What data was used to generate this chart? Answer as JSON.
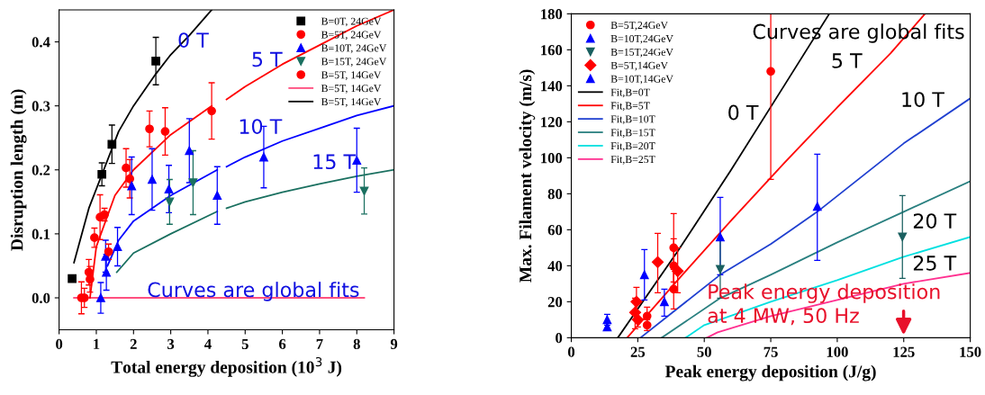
{
  "chart_data": [
    {
      "type": "scatter",
      "xlabel": "Total energy deposition (10$^{3}$ J)",
      "ylabel": "Disruption length (m)",
      "xlim": [
        0,
        9
      ],
      "xticks": [
        0,
        1,
        2,
        3,
        4,
        5,
        6,
        7,
        8,
        9
      ],
      "ylim": [
        -0.05,
        0.45
      ],
      "yticks": [
        {
          "value": 0,
          "label": "0.0"
        },
        0.1,
        0.2,
        0.3,
        0.4
      ],
      "legend": "top right",
      "grid": false,
      "annotations": [
        "0 T",
        "5 T",
        "10 T",
        "15 T",
        "Curves are global fits"
      ],
      "series": [
        {
          "name": "B=0T, 24GeV",
          "type": "scatter",
          "marker": "square",
          "color": "#000000",
          "x": [
            0.35,
            1.15,
            1.42,
            2.6
          ],
          "values": [
            0.03,
            0.193,
            0.24,
            0.37
          ],
          "errors": [
            0.005,
            0.018,
            0.03,
            0.037
          ]
        },
        {
          "name": "B=5T, 24GeV",
          "type": "scatter",
          "marker": "circle",
          "color": "#ff0000",
          "x": [
            0.8,
            0.95,
            1.22,
            1.8,
            2.85,
            4.1
          ],
          "values": [
            0.04,
            0.094,
            0.13,
            0.203,
            0.26,
            0.292
          ],
          "errors": [
            0.02,
            0.015,
            0.01,
            0.03,
            0.037,
            0.044
          ]
        },
        {
          "name": "B=10T, 24GeV",
          "type": "scatter",
          "marker": "triangle",
          "color": "#0000ff",
          "x": [
            1.12,
            1.25,
            1.27,
            1.57,
            2.95,
            4.25,
            5.5,
            8.0
          ],
          "values": [
            0.0,
            0.065,
            0.04,
            0.08,
            0.17,
            0.16,
            0.22,
            0.215
          ],
          "errors": [
            0.024,
            0.025,
            0.028,
            0.03,
            0.037,
            0.045,
            0.048,
            0.05
          ]
        },
        {
          "name": "B=15T, 24GeV",
          "type": "scatter",
          "marker": "triangle_down",
          "color": "#1a7060",
          "x": [
            2.97,
            3.6,
            8.2
          ],
          "values": [
            0.15,
            0.18,
            0.167
          ],
          "errors": [
            0.035,
            0.05,
            0.036
          ]
        },
        {
          "name": "B=5T, 14GeV",
          "type": "scatter",
          "marker": "circle",
          "color": "#ff0000",
          "x": [
            0.6,
            0.68,
            0.83,
            1.1,
            1.33,
            1.9,
            2.43
          ],
          "values": [
            0.0,
            0.0,
            0.029,
            0.126,
            0.072,
            0.186,
            0.264
          ],
          "errors": [
            0.025,
            0.015,
            0.02,
            0.035,
            0.012,
            0.03,
            0.028
          ]
        },
        {
          "type": "scatter",
          "marker": "triangle",
          "color": "#0000ff",
          "x": [
            1.95,
            2.5,
            3.5
          ],
          "values": [
            0.175,
            0.185,
            0.23
          ],
          "errors": [
            0.045,
            0.048,
            0.05
          ]
        },
        {
          "name": "B=5T, 14GeV",
          "type": "line",
          "color": "#ff5080",
          "x": [
            0.4,
            8.2
          ],
          "values": [
            0.0,
            0.0
          ]
        },
        {
          "name": "B=5T, 14GeV",
          "type": "line",
          "color": "#000000",
          "x": [
            0.4,
            0.8,
            1.2,
            1.6,
            2.0,
            2.6,
            3.0,
            3.5,
            4.1
          ],
          "values": [
            0.055,
            0.14,
            0.2,
            0.26,
            0.3,
            0.35,
            0.38,
            0.41,
            0.45
          ]
        },
        {
          "type": "line",
          "color": "#ff0000",
          "x": [
            0.83,
            1.0,
            1.5,
            2.0,
            3.0,
            4.1,
            4.3,
            4.5,
            5.0,
            6.0,
            7.0,
            8.0,
            9.0
          ],
          "values": [
            0.0,
            0.08,
            0.16,
            0.2,
            0.255,
            0.3,
            null,
            0.31,
            0.33,
            0.365,
            0.395,
            0.425,
            0.45
          ]
        },
        {
          "type": "line",
          "color": "#0000ff",
          "x": [
            1.3,
            1.6,
            2.0,
            3.0,
            4.25,
            4.4,
            4.5,
            5.0,
            6.0,
            7.0,
            8.0,
            9.0
          ],
          "values": [
            0.05,
            0.09,
            0.12,
            0.16,
            0.2,
            null,
            0.205,
            0.22,
            0.245,
            0.265,
            0.285,
            0.3
          ]
        },
        {
          "type": "line",
          "color": "#1a7060",
          "x": [
            1.55,
            2.0,
            3.0,
            4.25,
            4.4,
            4.5,
            5.0,
            6.0,
            7.0,
            8.0,
            9.0
          ],
          "values": [
            0.04,
            0.07,
            0.1,
            0.135,
            null,
            0.14,
            0.15,
            0.165,
            0.178,
            0.19,
            0.2
          ]
        }
      ]
    },
    {
      "type": "scatter",
      "xlabel": "Peak energy deposition (J/g)",
      "ylabel": "Max. Filament velocity (m/s)",
      "xlim": [
        0,
        150
      ],
      "xticks": [
        0,
        25,
        50,
        75,
        100,
        125,
        150
      ],
      "ylim": [
        0,
        180
      ],
      "yticks": [
        0,
        20,
        40,
        60,
        80,
        100,
        120,
        140,
        160,
        180
      ],
      "legend": "top left",
      "grid": false,
      "annotations": [
        "Curves are global fits",
        "0 T",
        "5 T",
        "10 T",
        "20 T",
        "25 T",
        "Peak energy deposition\nat 4 MW, 50 Hz"
      ],
      "series": [
        {
          "name": "B=5T,24GeV",
          "type": "scatter",
          "marker": "circle",
          "color": "#ff0000",
          "x": [
            28.5,
            28.5,
            38.5,
            38.5,
            38.5,
            75
          ],
          "values": [
            12,
            7,
            50,
            40,
            27,
            148
          ],
          "errors": [
            [
              7,
              17
            ],
            [
              4,
              10
            ],
            [
              31,
              69
            ],
            [
              28,
              55
            ],
            [
              16,
              38
            ],
            [
              88,
              180
            ]
          ]
        },
        {
          "name": "B=10T,24GeV",
          "type": "scatter",
          "marker": "triangle",
          "color": "#0000ff",
          "x": [
            27.5,
            35,
            56,
            92.5
          ],
          "values": [
            35,
            20,
            56,
            73
          ],
          "errors": [
            [
              21,
              49
            ],
            [
              12,
              27
            ],
            [
              35,
              78
            ],
            [
              43,
              102
            ]
          ]
        },
        {
          "name": "B=15T,24GeV",
          "type": "scatter",
          "marker": "triangle_down",
          "color": "#1a6060",
          "x": [
            56,
            124.5
          ],
          "values": [
            38,
            56
          ],
          "errors": [
            [
              22,
              55
            ],
            [
              33,
              79
            ]
          ]
        },
        {
          "name": "B=5T,14GeV",
          "type": "scatter",
          "marker": "diamond",
          "color": "#ff0000",
          "x": [
            24,
            24.5,
            25,
            32.5,
            40
          ],
          "values": [
            14,
            20,
            10,
            42,
            37
          ],
          "errors": [
            [
              5,
              22
            ],
            [
              12,
              28
            ],
            [
              6,
              14
            ],
            [
              25,
              58
            ],
            [
              25,
              50
            ]
          ]
        },
        {
          "name": "B=10T,14GeV",
          "type": "scatter",
          "marker": "triangle",
          "color": "#0000ff",
          "x": [
            13.5,
            13.5
          ],
          "values": [
            10,
            6
          ],
          "errors": [
            [
              7,
              13
            ],
            [
              4,
              8
            ]
          ]
        },
        {
          "name": "Fit,B=0T",
          "type": "line",
          "color": "#000000",
          "x": [
            17.5,
            40,
            60,
            80,
            97
          ],
          "values": [
            0,
            48,
            93,
            140,
            180
          ]
        },
        {
          "name": "Fit,B=5T",
          "type": "line",
          "color": "#ff0000",
          "x": [
            21,
            40,
            60,
            80,
            100,
            120,
            133
          ],
          "values": [
            0,
            32,
            65,
            97,
            128,
            158,
            180
          ]
        },
        {
          "name": "Fit,B=10T",
          "type": "line",
          "color": "#2040d0",
          "x": [
            26,
            56,
            75,
            92.5,
            125,
            150
          ],
          "values": [
            0,
            35,
            52,
            70,
            108,
            133
          ]
        },
        {
          "name": "Fit,B=15T",
          "type": "line",
          "color": "#2a8080",
          "x": [
            34,
            56,
            75,
            100,
            125,
            150
          ],
          "values": [
            0,
            22,
            35,
            53,
            70,
            87
          ]
        },
        {
          "name": "Fit,B=20T",
          "type": "line",
          "color": "#00e0e0",
          "x": [
            43,
            50,
            75,
            100,
            125,
            150
          ],
          "values": [
            0,
            7,
            20,
            32,
            45,
            56
          ]
        },
        {
          "name": "Fit,B=25T",
          "type": "line",
          "color": "#ff3090",
          "x": [
            51,
            55,
            75,
            100,
            125,
            150
          ],
          "values": [
            0,
            3,
            12,
            21,
            30,
            36
          ]
        }
      ]
    }
  ]
}
